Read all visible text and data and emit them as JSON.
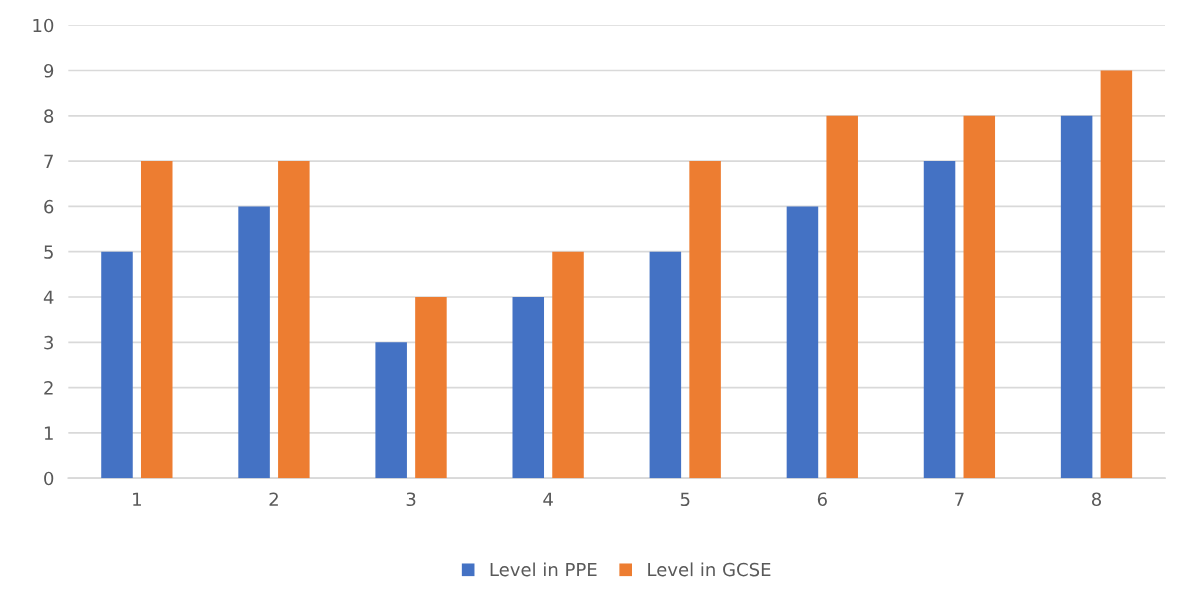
{
  "chart_data": {
    "type": "bar",
    "categories": [
      "1",
      "2",
      "3",
      "4",
      "5",
      "6",
      "7",
      "8"
    ],
    "series": [
      {
        "name": "Level in PPE",
        "color": "#4472c4",
        "values": [
          5,
          6,
          3,
          4,
          5,
          6,
          7,
          8
        ]
      },
      {
        "name": "Level in GCSE",
        "color": "#ed7d31",
        "values": [
          7,
          7,
          4,
          5,
          7,
          8,
          8,
          9
        ]
      }
    ],
    "ylim": [
      0,
      10
    ],
    "yticks": [
      0,
      1,
      2,
      3,
      4,
      5,
      6,
      7,
      8,
      9,
      10
    ],
    "grid": "y",
    "legend": "bottom"
  }
}
